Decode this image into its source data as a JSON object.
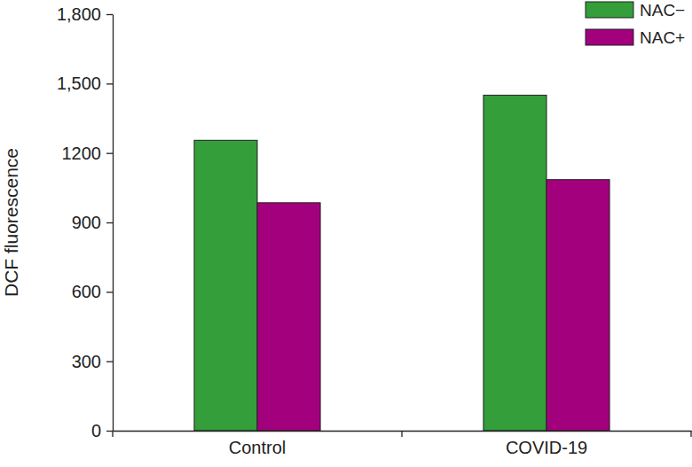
{
  "chart_data": {
    "type": "bar",
    "y_label": "DCF fluorescence",
    "categories": [
      "Control",
      "COVID-19"
    ],
    "series": [
      {
        "name": "NAC−",
        "color": "#339e3a",
        "values": [
          1255,
          1450
        ]
      },
      {
        "name": "NAC+",
        "color": "#a3007d",
        "values": [
          985,
          1085
        ]
      }
    ],
    "ylim": [
      0,
      1800
    ],
    "yticks": [
      0,
      300,
      600,
      900,
      1200,
      {
        "value": 1500,
        "label": "1,500"
      },
      {
        "value": 1800,
        "label": "1,800"
      }
    ],
    "grid": false,
    "legend": "top-right"
  }
}
